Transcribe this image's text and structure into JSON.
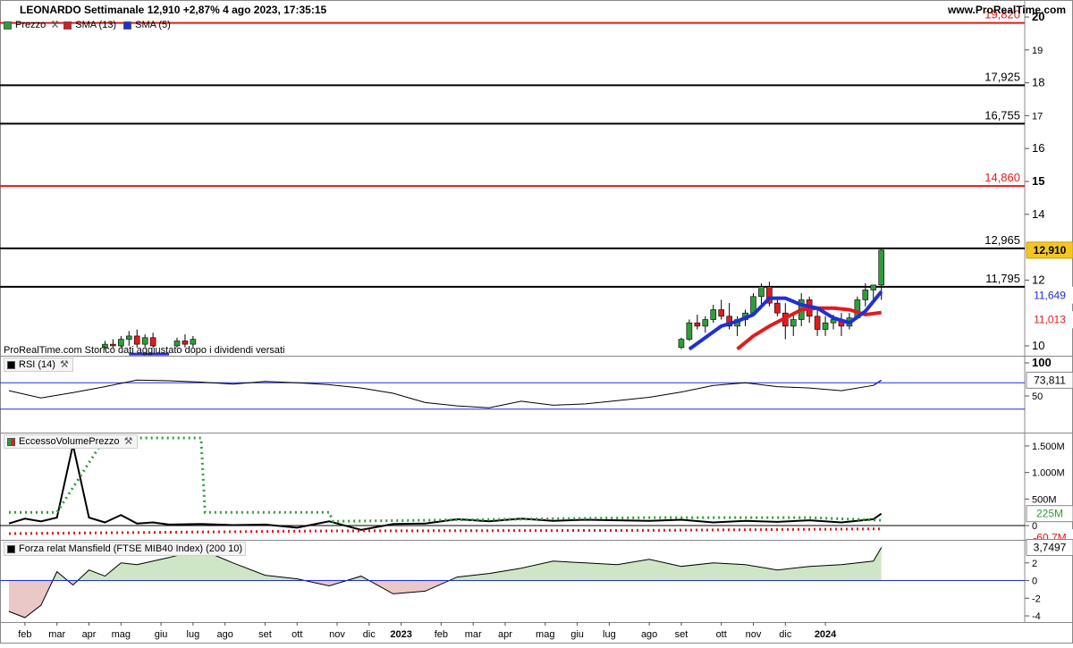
{
  "header": {
    "title": "LEONARDO Settimanale 12,910 +2,87% 4 ago 2023, 17:35:15",
    "site": "www.ProRealTime.com"
  },
  "legend_main": [
    {
      "label": "Prezzo",
      "color": "#2e9e3a",
      "icon": "wrench-icon"
    },
    {
      "label": "SMA (13)",
      "color": "#e31a1c"
    },
    {
      "label": "SMA (5)",
      "color": "#1f2fd6"
    }
  ],
  "panels": {
    "rsi_label": "RSI (14)",
    "eccesso_label": "EccessoVolumePrezzo",
    "mansfield_label": "Forza relat Mansfield (FTSE MIB40 Index) (200 10)"
  },
  "watermark": "ProRealTime.com  Storico dati aggiustato dopo i dividendi versati",
  "colors": {
    "up": "#2e9e3a",
    "down": "#e31a1c",
    "sma13": "#e31a1c",
    "sma5": "#1f2fd6",
    "grid": "#d9d9d9",
    "price_badge": "#f3c623"
  },
  "chart_data": [
    {
      "type": "candlestick",
      "title": "LEONARDO Settimanale",
      "ylim": [
        9.7,
        20.3
      ],
      "y_ticks": [
        10,
        12,
        14,
        15,
        16,
        17,
        18,
        19,
        20
      ],
      "x_ticks": [
        "feb",
        "mar",
        "apr",
        "mag",
        "giu",
        "lug",
        "ago",
        "set",
        "ott",
        "nov",
        "dic",
        "2023",
        "feb",
        "mar",
        "apr",
        "mag",
        "giu",
        "lug",
        "ago",
        "set",
        "ott",
        "nov",
        "dic",
        "2024"
      ],
      "last_price": "12,910",
      "sma13_value": "11,013",
      "sma5_value": "11,649",
      "levels": [
        {
          "value": 19.82,
          "label": "19,820",
          "color": "#e31a1c"
        },
        {
          "value": 17.925,
          "label": "17,925",
          "color": "#000000"
        },
        {
          "value": 16.755,
          "label": "16,755",
          "color": "#000000"
        },
        {
          "value": 14.86,
          "label": "14,860",
          "color": "#e31a1c"
        },
        {
          "value": 12.965,
          "label": "12,965",
          "color": "#000000"
        },
        {
          "value": 11.795,
          "label": "11,795",
          "color": "#000000"
        }
      ],
      "candles": [
        {
          "week": 84,
          "o": 9.95,
          "h": 10.25,
          "l": 9.9,
          "c": 10.2
        },
        {
          "week": 85,
          "o": 10.2,
          "h": 10.8,
          "l": 10.15,
          "c": 10.7
        },
        {
          "week": 86,
          "o": 10.7,
          "h": 10.95,
          "l": 10.5,
          "c": 10.6
        },
        {
          "week": 87,
          "o": 10.6,
          "h": 10.9,
          "l": 10.4,
          "c": 10.8
        },
        {
          "week": 88,
          "o": 10.8,
          "h": 11.25,
          "l": 10.7,
          "c": 11.1
        },
        {
          "week": 89,
          "o": 11.1,
          "h": 11.4,
          "l": 10.8,
          "c": 10.9
        },
        {
          "week": 90,
          "o": 10.9,
          "h": 11.3,
          "l": 10.5,
          "c": 10.6
        },
        {
          "week": 91,
          "o": 10.6,
          "h": 10.9,
          "l": 10.3,
          "c": 10.8
        },
        {
          "week": 92,
          "o": 10.8,
          "h": 11.1,
          "l": 10.6,
          "c": 11.0
        },
        {
          "week": 93,
          "o": 11.0,
          "h": 11.6,
          "l": 10.9,
          "c": 11.5
        },
        {
          "week": 94,
          "o": 11.5,
          "h": 11.9,
          "l": 11.2,
          "c": 11.8
        },
        {
          "week": 95,
          "o": 11.8,
          "h": 11.95,
          "l": 11.2,
          "c": 11.3
        },
        {
          "week": 96,
          "o": 11.3,
          "h": 11.5,
          "l": 10.9,
          "c": 11.0
        },
        {
          "week": 97,
          "o": 11.0,
          "h": 11.3,
          "l": 10.2,
          "c": 10.6
        },
        {
          "week": 98,
          "o": 10.6,
          "h": 11.0,
          "l": 10.3,
          "c": 10.8
        },
        {
          "week": 99,
          "o": 10.8,
          "h": 11.6,
          "l": 10.6,
          "c": 11.4
        },
        {
          "week": 100,
          "o": 11.4,
          "h": 11.5,
          "l": 10.7,
          "c": 10.9
        },
        {
          "week": 101,
          "o": 10.9,
          "h": 11.1,
          "l": 10.3,
          "c": 10.5
        },
        {
          "week": 102,
          "o": 10.5,
          "h": 10.9,
          "l": 10.3,
          "c": 10.7
        },
        {
          "week": 103,
          "o": 10.7,
          "h": 10.95,
          "l": 10.5,
          "c": 10.8
        },
        {
          "week": 104,
          "o": 10.8,
          "h": 11.0,
          "l": 10.3,
          "c": 10.6
        },
        {
          "week": 105,
          "o": 10.6,
          "h": 11.0,
          "l": 10.5,
          "c": 10.85
        },
        {
          "week": 106,
          "o": 10.85,
          "h": 11.5,
          "l": 10.8,
          "c": 11.4
        },
        {
          "week": 107,
          "o": 11.4,
          "h": 11.9,
          "l": 11.2,
          "c": 11.7
        },
        {
          "week": 108,
          "o": 11.7,
          "h": 11.85,
          "l": 11.3,
          "c": 11.85
        },
        {
          "week": 109,
          "o": 11.85,
          "h": 12.96,
          "l": 11.4,
          "c": 12.91
        }
      ],
      "early_candles": [
        {
          "week": 12,
          "o": 9.95,
          "h": 10.15,
          "l": 9.9,
          "c": 10.05
        },
        {
          "week": 13,
          "o": 10.05,
          "h": 10.2,
          "l": 9.95,
          "c": 10.0
        },
        {
          "week": 14,
          "o": 10.0,
          "h": 10.3,
          "l": 9.95,
          "c": 10.2
        },
        {
          "week": 15,
          "o": 10.2,
          "h": 10.45,
          "l": 10.0,
          "c": 10.3
        },
        {
          "week": 16,
          "o": 10.3,
          "h": 10.5,
          "l": 9.95,
          "c": 10.05
        },
        {
          "week": 17,
          "o": 10.05,
          "h": 10.35,
          "l": 9.95,
          "c": 10.25
        },
        {
          "week": 18,
          "o": 10.25,
          "h": 10.4,
          "l": 9.95,
          "c": 10.0
        },
        {
          "week": 21,
          "o": 10.0,
          "h": 10.25,
          "l": 9.95,
          "c": 10.15
        },
        {
          "week": 22,
          "o": 10.15,
          "h": 10.35,
          "l": 9.95,
          "c": 10.05
        },
        {
          "week": 23,
          "o": 10.05,
          "h": 10.3,
          "l": 9.95,
          "c": 10.2
        }
      ],
      "sma5": [
        {
          "week": 85,
          "v": 9.9
        },
        {
          "week": 87,
          "v": 10.25
        },
        {
          "week": 89,
          "v": 10.6
        },
        {
          "week": 91,
          "v": 10.75
        },
        {
          "week": 93,
          "v": 10.95
        },
        {
          "week": 95,
          "v": 11.45
        },
        {
          "week": 97,
          "v": 11.45
        },
        {
          "week": 99,
          "v": 11.25
        },
        {
          "week": 101,
          "v": 11.15
        },
        {
          "week": 103,
          "v": 10.85
        },
        {
          "week": 105,
          "v": 10.7
        },
        {
          "week": 107,
          "v": 11.05
        },
        {
          "week": 109,
          "v": 11.649
        }
      ],
      "sma13": [
        {
          "week": 91,
          "v": 9.9
        },
        {
          "week": 93,
          "v": 10.3
        },
        {
          "week": 95,
          "v": 10.6
        },
        {
          "week": 97,
          "v": 10.85
        },
        {
          "week": 99,
          "v": 11.1
        },
        {
          "week": 101,
          "v": 11.15
        },
        {
          "week": 103,
          "v": 11.15
        },
        {
          "week": 105,
          "v": 11.1
        },
        {
          "week": 107,
          "v": 10.95
        },
        {
          "week": 109,
          "v": 11.013
        }
      ]
    },
    {
      "type": "line",
      "name": "RSI (14)",
      "ylim": [
        0,
        100
      ],
      "y_ticks": [
        50,
        100
      ],
      "last_value": "73,811",
      "bands": [
        70,
        30
      ],
      "x": [
        0,
        4,
        8,
        12,
        16,
        20,
        24,
        28,
        32,
        36,
        40,
        44,
        48,
        52,
        56,
        60,
        64,
        68,
        72,
        76,
        80,
        84,
        88,
        92,
        96,
        100,
        104,
        108,
        109
      ],
      "values": [
        58,
        47,
        55,
        64,
        74,
        73,
        71,
        68,
        72,
        70,
        67,
        62,
        54,
        40,
        35,
        32,
        42,
        36,
        38,
        43,
        48,
        56,
        66,
        70,
        64,
        62,
        58,
        66,
        73.8
      ]
    },
    {
      "type": "line",
      "name": "EccessoVolumePrezzo",
      "ylim": [
        -100,
        1650
      ],
      "y_ticks": [
        0,
        "500M",
        "1.000M",
        "1.500M"
      ],
      "last_value": "225M",
      "lower_value": "-60,7M",
      "series": [
        {
          "name": "line",
          "x": [
            0,
            2,
            4,
            6,
            8,
            10,
            12,
            14,
            16,
            18,
            20,
            24,
            28,
            32,
            36,
            40,
            44,
            48,
            52,
            56,
            60,
            64,
            68,
            72,
            76,
            80,
            84,
            88,
            92,
            96,
            100,
            104,
            108,
            109
          ],
          "values": [
            40,
            130,
            80,
            150,
            1520,
            150,
            60,
            200,
            40,
            60,
            20,
            30,
            10,
            20,
            -40,
            80,
            -80,
            30,
            40,
            120,
            80,
            130,
            90,
            110,
            100,
            90,
            110,
            60,
            90,
            70,
            100,
            60,
            120,
            225
          ]
        },
        {
          "name": "upper",
          "x": [
            0,
            6,
            12,
            24,
            24.5,
            40,
            40.5,
            80,
            100,
            109
          ],
          "values": [
            250,
            250,
            1650,
            1650,
            250,
            250,
            80,
            150,
            150,
            100
          ]
        },
        {
          "name": "lower",
          "x": [
            0,
            40,
            80,
            109
          ],
          "values": [
            -150,
            -100,
            -90,
            -60.7
          ]
        }
      ]
    },
    {
      "type": "area",
      "name": "Forza relat Mansfield (FTSE MIB40 Index) (200 10)",
      "ylim": [
        -4.5,
        4
      ],
      "y_ticks": [
        -4,
        -2,
        0,
        2
      ],
      "last_value": "3,7497",
      "x": [
        0,
        2,
        4,
        6,
        8,
        10,
        12,
        14,
        16,
        18,
        20,
        24,
        28,
        32,
        36,
        40,
        44,
        48,
        52,
        56,
        60,
        64,
        68,
        72,
        76,
        80,
        84,
        88,
        92,
        96,
        100,
        104,
        108,
        109
      ],
      "values": [
        -3.5,
        -4.2,
        -2.8,
        1.0,
        -0.5,
        1.2,
        0.5,
        2.0,
        1.8,
        2.2,
        2.6,
        3.5,
        2.0,
        0.6,
        0.2,
        -0.6,
        0.5,
        -1.5,
        -1.2,
        0.4,
        0.8,
        1.4,
        2.2,
        2.0,
        1.8,
        2.4,
        1.6,
        2.0,
        1.8,
        1.2,
        1.6,
        1.8,
        2.2,
        3.7497
      ]
    }
  ]
}
